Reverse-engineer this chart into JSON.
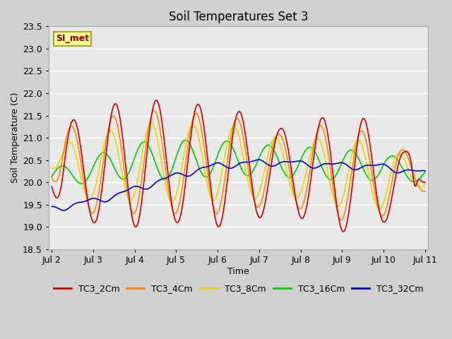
{
  "title": "Soil Temperatures Set 3",
  "xlabel": "Time",
  "ylabel": "Soil Temperature (C)",
  "ylim": [
    18.5,
    23.5
  ],
  "x_ticks": [
    2,
    3,
    4,
    5,
    6,
    7,
    8,
    9,
    10,
    11
  ],
  "x_tick_labels": [
    "Jul 2",
    "Jul 3",
    "Jul 4",
    "Jul 5",
    "Jul 6",
    "Jul 7",
    "Jul 8",
    "Jul 9",
    "Jul 10",
    "Jul 11"
  ],
  "series_colors": {
    "TC3_2Cm": "#cc0000",
    "TC3_4Cm": "#ff8800",
    "TC3_8Cm": "#dddd00",
    "TC3_16Cm": "#00cc00",
    "TC3_32Cm": "#0000cc"
  },
  "legend_label": "SI_met",
  "legend_box_color": "#ffff99",
  "legend_box_edge": "#999900",
  "plot_bg_color": "#e8e8e8",
  "fig_bg_color": "#d0d0d0",
  "grid_color": "#ffffff",
  "linewidth": 1.2
}
